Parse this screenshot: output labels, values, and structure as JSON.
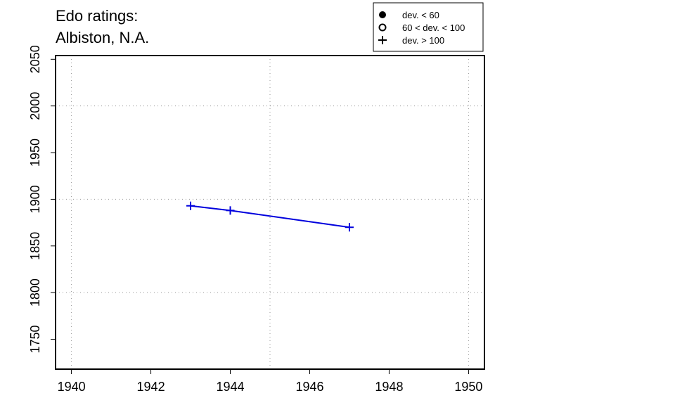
{
  "chart_data": {
    "type": "line",
    "title_lines": [
      "Edo ratings:",
      "Albiston, N.A."
    ],
    "xlabel": "",
    "ylabel": "",
    "xlim": [
      1939.6,
      1950.4
    ],
    "ylim": [
      1718,
      2054
    ],
    "x_ticks": [
      1940,
      1942,
      1944,
      1946,
      1948,
      1950
    ],
    "y_ticks": [
      1750,
      1800,
      1850,
      1900,
      1950,
      2000,
      2050
    ],
    "x_grid": [
      1940,
      1945,
      1950
    ],
    "y_grid": [
      1800,
      1900,
      2000
    ],
    "grid": true,
    "legend_position": "top-right",
    "legend": [
      {
        "symbol": "filled-circle",
        "label": "dev. < 60"
      },
      {
        "symbol": "open-circle",
        "label": "60 < dev. < 100"
      },
      {
        "symbol": "plus",
        "label": "dev. > 100"
      }
    ],
    "series": [
      {
        "color": "#0000dd",
        "marker": "plus",
        "x": [
          1943,
          1944,
          1947
        ],
        "y": [
          1893,
          1888,
          1870
        ]
      }
    ]
  }
}
